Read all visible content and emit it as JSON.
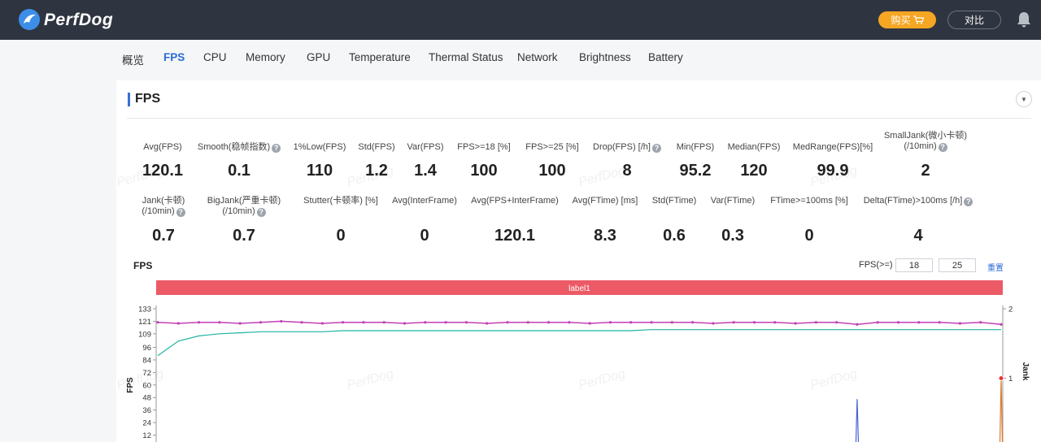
{
  "app": {
    "brand": "PerfDog",
    "buy_label": "购买",
    "compare_label": "对比"
  },
  "tabs": [
    {
      "label": "概览",
      "active": false
    },
    {
      "label": "FPS",
      "active": true
    },
    {
      "label": "CPU",
      "active": false
    },
    {
      "label": "Memory",
      "active": false
    },
    {
      "label": "GPU",
      "active": false
    },
    {
      "label": "Temperature",
      "active": false
    },
    {
      "label": "Thermal Status",
      "active": false
    },
    {
      "label": "Network",
      "active": false
    },
    {
      "label": "Brightness",
      "active": false
    },
    {
      "label": "Battery",
      "active": false
    }
  ],
  "card": {
    "title": "FPS"
  },
  "metrics_row1": [
    {
      "label": "Avg(FPS)",
      "value": "120.1",
      "help": false
    },
    {
      "label": "Smooth(稳帧指数)",
      "value": "0.1",
      "help": true
    },
    {
      "label": "1%Low(FPS)",
      "value": "110",
      "help": false
    },
    {
      "label": "Std(FPS)",
      "value": "1.2",
      "help": false
    },
    {
      "label": "Var(FPS)",
      "value": "1.4",
      "help": false
    },
    {
      "label": "FPS>=18 [%]",
      "value": "100",
      "help": false
    },
    {
      "label": "FPS>=25 [%]",
      "value": "100",
      "help": false
    },
    {
      "label": "Drop(FPS) [/h]",
      "value": "8",
      "help": true
    },
    {
      "label": "Min(FPS)",
      "value": "95.2",
      "help": false
    },
    {
      "label": "Median(FPS)",
      "value": "120",
      "help": false
    },
    {
      "label": "MedRange(FPS)[%]",
      "value": "99.9",
      "help": false
    },
    {
      "label": "SmallJank(微小卡顿)",
      "label2": "(/10min)",
      "value": "2",
      "help": true
    }
  ],
  "metrics_row2": [
    {
      "label": "Jank(卡顿)",
      "label2": "(/10min)",
      "value": "0.7",
      "help": true
    },
    {
      "label": "BigJank(严重卡顿)",
      "label2": "(/10min)",
      "value": "0.7",
      "help": true
    },
    {
      "label": "Stutter(卡顿率) [%]",
      "value": "0",
      "help": false
    },
    {
      "label": "Avg(InterFrame)",
      "value": "0",
      "help": false
    },
    {
      "label": "Avg(FPS+InterFrame)",
      "value": "120.1",
      "help": false
    },
    {
      "label": "Avg(FTime) [ms]",
      "value": "8.3",
      "help": false
    },
    {
      "label": "Std(FTime)",
      "value": "0.6",
      "help": false
    },
    {
      "label": "Var(FTime)",
      "value": "0.3",
      "help": false
    },
    {
      "label": "FTime>=100ms [%]",
      "value": "0",
      "help": false
    },
    {
      "label": "Delta(FTime)>100ms [/h]",
      "value": "4",
      "help": true
    }
  ],
  "chart_panel": {
    "title": "FPS",
    "filter_label": "FPS(>=)",
    "threshold_1": "18",
    "threshold_2": "25",
    "reset_label": "重置",
    "band_label": "label1"
  },
  "watermark_text": "PerfDog",
  "colors": {
    "accent": "#2a6bd6",
    "band": "#ec5a66",
    "fps_series": "#c23fb4",
    "avg_series": "#1fb3a3",
    "jank_series": "#4a63d8",
    "buy": "#f5a623"
  },
  "chart_data": {
    "type": "line",
    "title": "",
    "ylabel": "FPS",
    "y2label": "Jank",
    "y_ticks": [
      133,
      121,
      109,
      96,
      84,
      72,
      60,
      48,
      36,
      24,
      12
    ],
    "y2_ticks": [
      2,
      1
    ],
    "ylim": [
      0,
      133
    ],
    "y2lim": [
      0,
      2
    ],
    "series": [
      {
        "values": [
          120,
          119,
          120,
          120,
          119,
          120,
          121,
          120,
          119,
          120,
          120,
          120,
          119,
          120,
          120,
          120,
          119,
          120,
          120,
          120,
          120,
          119,
          120,
          120,
          120,
          120,
          120,
          119,
          120,
          120,
          120,
          119,
          120,
          120,
          118,
          120,
          120,
          120,
          120,
          119,
          120,
          118
        ]
      },
      {
        "values": [
          88,
          102,
          107,
          109,
          110,
          111,
          111,
          111,
          111,
          112,
          112,
          112,
          112,
          112,
          112,
          112,
          112,
          112,
          112,
          112,
          112,
          112,
          112,
          112,
          113,
          113,
          113,
          113,
          113,
          113,
          113,
          113,
          113,
          113,
          113,
          113,
          113,
          113,
          113,
          113,
          113,
          113
        ]
      },
      {
        "values": [
          0,
          0,
          0,
          0,
          0,
          0,
          0,
          0,
          0,
          0,
          0,
          0,
          0,
          0,
          0,
          0,
          0,
          0,
          0,
          0,
          0,
          0,
          0,
          0,
          0,
          0,
          0,
          0,
          0,
          0,
          0,
          0,
          0,
          0,
          0.7,
          0,
          0,
          0,
          0,
          0,
          0,
          1
        ]
      }
    ]
  }
}
